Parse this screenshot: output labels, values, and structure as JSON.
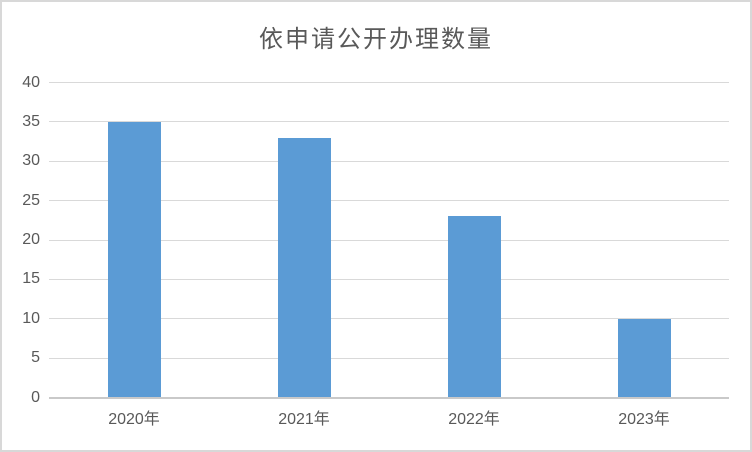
{
  "chart_data": {
    "type": "bar",
    "title": "依申请公开办理数量",
    "categories": [
      "2020年",
      "2021年",
      "2022年",
      "2023年"
    ],
    "values": [
      35,
      33,
      23,
      10
    ],
    "xlabel": "",
    "ylabel": "",
    "ylim": [
      0,
      40
    ],
    "yticks": [
      0,
      5,
      10,
      15,
      20,
      25,
      30,
      35,
      40
    ],
    "grid": true,
    "legend": "none",
    "colors": {
      "bar": "#5B9BD5",
      "gridline": "#D9D9D9",
      "axis_line": "#C9C9C9",
      "tick_text": "#595959",
      "title_text": "#595959",
      "frame": "#D8D8D8",
      "background": "#FFFFFF"
    }
  }
}
